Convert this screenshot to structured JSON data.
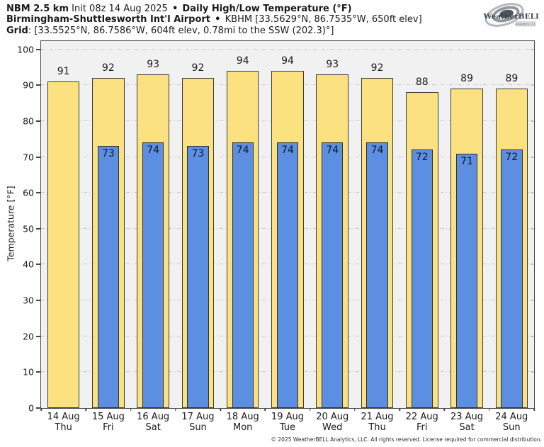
{
  "header": {
    "product": "NBM 2.5 km",
    "init": "Init 08z 14 Aug 2025",
    "bullet": "•",
    "title": "Daily High/Low Temperature (°F)",
    "station_name": "Birmingham-Shuttlesworth Int'l Airport",
    "station_info": "KBHM [33.5629°N, 86.7535°W, 650ft elev]",
    "grid_label": "Grid",
    "grid_info": ": [33.5525°N, 86.7586°W, 604ft elev, 0.78mi to the SSW (202.3)°]"
  },
  "logo": {
    "brand": "WeatherBELL",
    "sub": "Analytics LLC"
  },
  "chart_data": {
    "type": "bar",
    "title": "Daily High/Low Temperature (°F)",
    "ylabel": "Temperature [°F]",
    "ylim": [
      0,
      102.3
    ],
    "yticks": [
      0,
      10,
      20,
      30,
      40,
      50,
      60,
      70,
      80,
      90,
      100
    ],
    "grid": "horizontal dash-dot lines at every 10°F",
    "legend_position": "none",
    "categories": [
      "14 Aug",
      "15 Aug",
      "16 Aug",
      "17 Aug",
      "18 Aug",
      "19 Aug",
      "20 Aug",
      "21 Aug",
      "22 Aug",
      "23 Aug",
      "24 Aug"
    ],
    "weekdays": [
      "Thu",
      "Fri",
      "Sat",
      "Sun",
      "Mon",
      "Tue",
      "Wed",
      "Thu",
      "Fri",
      "Sat",
      "Sun"
    ],
    "series": [
      {
        "name": "Daily High",
        "color": "#fbe180",
        "values": [
          91,
          92,
          93,
          92,
          94,
          94,
          93,
          92,
          88,
          89,
          89
        ]
      },
      {
        "name": "Daily Low",
        "color": "#5c8fe2",
        "values": [
          null,
          73,
          74,
          73,
          74,
          74,
          74,
          74,
          72,
          71,
          72
        ]
      }
    ]
  },
  "footer": {
    "copyright": "© 2025 WeatherBELL Analytics, LLC. All rights reserved. License required for commercial distribution."
  }
}
